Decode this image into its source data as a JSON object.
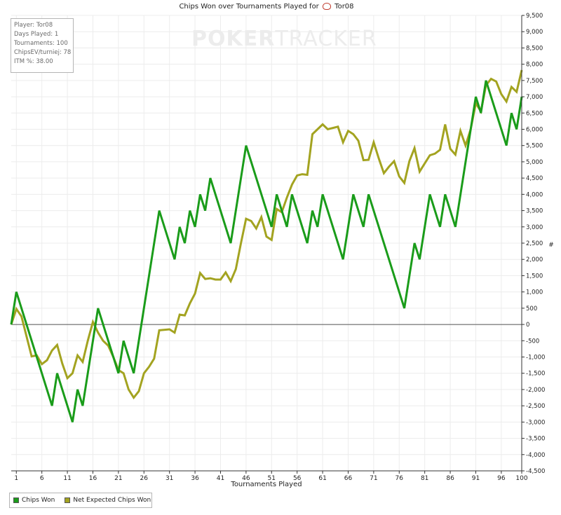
{
  "chart_data": {
    "type": "line",
    "title_prefix": "Chips Won over Tournaments Played for",
    "player_name": "Tor08",
    "xlabel": "Tournaments Played",
    "ylabel": "#",
    "xlim": [
      0,
      100
    ],
    "ylim": [
      -4500,
      9500
    ],
    "x_ticks": [
      1,
      6,
      11,
      16,
      21,
      26,
      31,
      36,
      41,
      46,
      51,
      56,
      61,
      66,
      71,
      76,
      81,
      86,
      91,
      96,
      100
    ],
    "y_ticks": [
      -4500,
      -4000,
      -3500,
      -3000,
      -2500,
      -2000,
      -1500,
      -1000,
      -500,
      0,
      500,
      1000,
      1500,
      2000,
      2500,
      3000,
      3500,
      4000,
      4500,
      5000,
      5500,
      6000,
      6500,
      7000,
      7500,
      8000,
      8500,
      9000,
      9500
    ],
    "y_tick_labels": [
      "-4,500",
      "-4,000",
      "-3,500",
      "-3,000",
      "-2,500",
      "-2,000",
      "-1,500",
      "-1,000",
      "-500",
      "0",
      "500",
      "1,000",
      "1,500",
      "2,000",
      "2,500",
      "3,000",
      "3,500",
      "4,000",
      "4,500",
      "5,000",
      "5,500",
      "6,000",
      "6,500",
      "7,000",
      "7,500",
      "8,000",
      "8,500",
      "9,000",
      "9,500"
    ],
    "grid": true,
    "legend_position": "bottom-left",
    "series": [
      {
        "name": "Chips Won",
        "color": "#1a9c1a",
        "points": [
          [
            0,
            0
          ],
          [
            1,
            1000
          ],
          [
            8,
            -2500
          ],
          [
            9,
            -1500
          ],
          [
            12,
            -3000
          ],
          [
            13,
            -2000
          ],
          [
            14,
            -2500
          ],
          [
            17,
            500
          ],
          [
            21,
            -1500
          ],
          [
            22,
            -500
          ],
          [
            24,
            -1500
          ],
          [
            29,
            3500
          ],
          [
            32,
            2000
          ],
          [
            33,
            3000
          ],
          [
            34,
            2500
          ],
          [
            35,
            3500
          ],
          [
            36,
            3000
          ],
          [
            37,
            4000
          ],
          [
            38,
            3500
          ],
          [
            39,
            4500
          ],
          [
            43,
            2500
          ],
          [
            46,
            5500
          ],
          [
            51,
            3000
          ],
          [
            52,
            4000
          ],
          [
            54,
            3000
          ],
          [
            55,
            4000
          ],
          [
            58,
            2500
          ],
          [
            59,
            3500
          ],
          [
            60,
            3000
          ],
          [
            61,
            4000
          ],
          [
            65,
            2000
          ],
          [
            67,
            4000
          ],
          [
            69,
            3000
          ],
          [
            70,
            4000
          ],
          [
            77,
            500
          ],
          [
            79,
            2500
          ],
          [
            80,
            2000
          ],
          [
            82,
            4000
          ],
          [
            84,
            3000
          ],
          [
            85,
            4000
          ],
          [
            87,
            3000
          ],
          [
            91,
            7000
          ],
          [
            92,
            6500
          ],
          [
            93,
            7500
          ],
          [
            97,
            5500
          ],
          [
            98,
            6500
          ],
          [
            99,
            6000
          ],
          [
            100,
            7000
          ]
        ]
      },
      {
        "name": "Net Expected Chips Won",
        "color": "#a3a320",
        "points": [
          [
            0,
            0
          ],
          [
            1,
            480
          ],
          [
            2,
            250
          ],
          [
            4,
            -980
          ],
          [
            5,
            -950
          ],
          [
            6,
            -1220
          ],
          [
            7,
            -1100
          ],
          [
            8,
            -800
          ],
          [
            9,
            -630
          ],
          [
            10,
            -1200
          ],
          [
            11,
            -1650
          ],
          [
            12,
            -1500
          ],
          [
            13,
            -950
          ],
          [
            14,
            -1150
          ],
          [
            15,
            -500
          ],
          [
            16,
            80
          ],
          [
            17,
            -250
          ],
          [
            18,
            -500
          ],
          [
            19,
            -650
          ],
          [
            20,
            -1000
          ],
          [
            21,
            -1400
          ],
          [
            22,
            -1500
          ],
          [
            23,
            -2000
          ],
          [
            24,
            -2250
          ],
          [
            25,
            -2050
          ],
          [
            26,
            -1500
          ],
          [
            27,
            -1300
          ],
          [
            28,
            -1050
          ],
          [
            29,
            -180
          ],
          [
            31,
            -150
          ],
          [
            32,
            -250
          ],
          [
            33,
            300
          ],
          [
            34,
            280
          ],
          [
            35,
            650
          ],
          [
            36,
            950
          ],
          [
            37,
            1580
          ],
          [
            38,
            1400
          ],
          [
            39,
            1420
          ],
          [
            40,
            1380
          ],
          [
            41,
            1380
          ],
          [
            42,
            1600
          ],
          [
            43,
            1330
          ],
          [
            44,
            1700
          ],
          [
            45,
            2500
          ],
          [
            46,
            3250
          ],
          [
            47,
            3180
          ],
          [
            48,
            2950
          ],
          [
            49,
            3300
          ],
          [
            50,
            2700
          ],
          [
            51,
            2600
          ],
          [
            52,
            3550
          ],
          [
            53,
            3450
          ],
          [
            54,
            3900
          ],
          [
            55,
            4300
          ],
          [
            56,
            4580
          ],
          [
            57,
            4620
          ],
          [
            58,
            4600
          ],
          [
            59,
            5850
          ],
          [
            61,
            6150
          ],
          [
            62,
            6000
          ],
          [
            64,
            6080
          ],
          [
            65,
            5600
          ],
          [
            66,
            5950
          ],
          [
            67,
            5850
          ],
          [
            68,
            5650
          ],
          [
            69,
            5050
          ],
          [
            70,
            5060
          ],
          [
            71,
            5600
          ],
          [
            72,
            5100
          ],
          [
            73,
            4650
          ],
          [
            74,
            4850
          ],
          [
            75,
            5020
          ],
          [
            76,
            4550
          ],
          [
            77,
            4350
          ],
          [
            78,
            5020
          ],
          [
            79,
            5420
          ],
          [
            80,
            4700
          ],
          [
            81,
            4950
          ],
          [
            82,
            5200
          ],
          [
            83,
            5250
          ],
          [
            84,
            5370
          ],
          [
            85,
            6150
          ],
          [
            86,
            5400
          ],
          [
            87,
            5220
          ],
          [
            88,
            5950
          ],
          [
            89,
            5500
          ],
          [
            90,
            6000
          ],
          [
            91,
            6800
          ],
          [
            92,
            6550
          ],
          [
            93,
            7350
          ],
          [
            94,
            7550
          ],
          [
            95,
            7470
          ],
          [
            96,
            7080
          ],
          [
            97,
            6850
          ],
          [
            98,
            7300
          ],
          [
            99,
            7150
          ],
          [
            100,
            7820
          ]
        ]
      }
    ]
  },
  "info_box": {
    "player": "Player: Tor08",
    "days_played": "Days Played: 1",
    "tournaments": "Tournaments: 100",
    "chips_ev": "ChipsEV/turniej: 78",
    "itm": "ITM %: 38.00"
  },
  "watermark": {
    "poker": "POKER",
    "tracker": "TRACKER"
  },
  "legend": {
    "items": [
      {
        "label": "Chips Won",
        "color": "#1a9c1a"
      },
      {
        "label": "Net Expected Chips Won",
        "color": "#a3a320"
      }
    ]
  }
}
